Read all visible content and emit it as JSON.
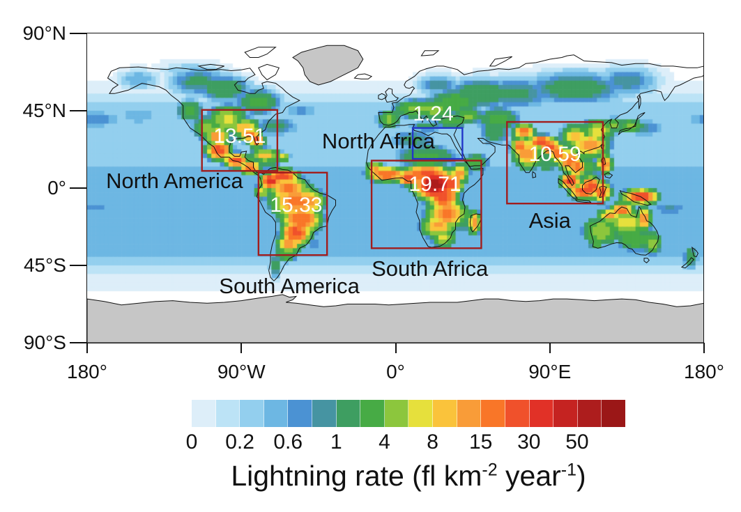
{
  "figure": {
    "background": "#ffffff"
  },
  "axes": {
    "y_ticks": [
      {
        "label": "90°N",
        "lat": 90
      },
      {
        "label": "45°N",
        "lat": 45
      },
      {
        "label": "0°",
        "lat": 0
      },
      {
        "label": "45°S",
        "lat": -45
      },
      {
        "label": "90°S",
        "lat": -90
      }
    ],
    "x_ticks": [
      {
        "label": "180°",
        "lon": -180
      },
      {
        "label": "90°W",
        "lon": -90
      },
      {
        "label": "0°",
        "lon": 0
      },
      {
        "label": "90°E",
        "lon": 90
      },
      {
        "label": "180°",
        "lon": 180
      }
    ]
  },
  "colorbar": {
    "tick_labels": [
      "0",
      "0.2",
      "0.6",
      "1",
      "4",
      "8",
      "15",
      "30",
      "50"
    ],
    "label_parts": {
      "text1": "Lightning rate (fl km",
      "sup1": "-2",
      "text2": " year",
      "sup2": "-1",
      "text3": ")"
    }
  },
  "chart_data": {
    "type": "heatmap",
    "variable": "Lightning rate",
    "units": "fl km-2 year-1",
    "projection": "equirectangular",
    "lon_range": [
      -180,
      180
    ],
    "lat_range": [
      -90,
      90
    ],
    "colorbar_tick_labels": [
      "0",
      "0.2",
      "0.6",
      "1",
      "4",
      "8",
      "15",
      "30",
      "50"
    ],
    "levels": [
      0,
      0.1,
      0.2,
      0.4,
      0.6,
      0.8,
      1,
      2,
      4,
      6,
      8,
      11,
      15,
      22,
      30,
      40,
      50,
      65
    ],
    "segment_colors": [
      "#ddeef9",
      "#bce3f6",
      "#93cfee",
      "#6db7e3",
      "#4b92d3",
      "#4694a2",
      "#3e9e61",
      "#47ab45",
      "#8cc63d",
      "#e6e03c",
      "#fac33b",
      "#f99c38",
      "#f97628",
      "#f0512b",
      "#e13127",
      "#c52321",
      "#ad1d1d",
      "#9b1717"
    ],
    "nodata_color": "#c6c6c6",
    "regions": [
      {
        "name": "North America",
        "mean_rate": "13.51",
        "box_color": "#a11d1d",
        "box_deg": {
          "lon_min": -113,
          "lon_max": -69,
          "lat_min": 10,
          "lat_max": 45.5
        },
        "value_anchor": {
          "lon": -91,
          "lat": 30
        },
        "label_anchor": {
          "lon": -129,
          "lat": 4
        }
      },
      {
        "name": "South America",
        "mean_rate": "15.33",
        "box_color": "#a11d1d",
        "box_deg": {
          "lon_min": -80,
          "lon_max": -40,
          "lat_min": -39,
          "lat_max": 9
        },
        "value_anchor": {
          "lon": -58,
          "lat": -10
        },
        "label_anchor": {
          "lon": -62,
          "lat": -57
        }
      },
      {
        "name": "North Africa",
        "mean_rate": "1.24",
        "box_color": "#2236c8",
        "box_deg": {
          "lon_min": 10,
          "lon_max": 39,
          "lat_min": 17,
          "lat_max": 35
        },
        "value_anchor": {
          "lon": 22,
          "lat": 43
        },
        "label_anchor": {
          "lon": -10,
          "lat": 27
        }
      },
      {
        "name": "South Africa",
        "mean_rate": "19.71",
        "box_color": "#a11d1d",
        "box_deg": {
          "lon_min": -14,
          "lon_max": 50,
          "lat_min": -35,
          "lat_max": 16
        },
        "value_anchor": {
          "lon": 23,
          "lat": 2
        },
        "label_anchor": {
          "lon": 20,
          "lat": -47
        }
      },
      {
        "name": "Asia",
        "mean_rate": "10.59",
        "box_color": "#a11d1d",
        "box_deg": {
          "lon_min": 65,
          "lon_max": 121,
          "lat_min": -9,
          "lat_max": 38.5
        },
        "value_anchor": {
          "lon": 93,
          "lat": 19.5
        },
        "label_anchor": {
          "lon": 90,
          "lat": -19
        }
      }
    ],
    "ocean_base_by_lat": [
      [
        90,
        0
      ],
      [
        66,
        0
      ],
      [
        60,
        0.04
      ],
      [
        52,
        0.12
      ],
      [
        45,
        0.3
      ],
      [
        38,
        0.35
      ],
      [
        30,
        0.22
      ],
      [
        22,
        0.2
      ],
      [
        15,
        0.3
      ],
      [
        8,
        0.6
      ],
      [
        2,
        0.45
      ],
      [
        -5,
        0.5
      ],
      [
        -12,
        0.45
      ],
      [
        -20,
        0.4
      ],
      [
        -28,
        0.45
      ],
      [
        -36,
        0.5
      ],
      [
        -44,
        0.25
      ],
      [
        -50,
        0.1
      ],
      [
        -56,
        0.04
      ],
      [
        -62,
        0.01
      ],
      [
        -90,
        0
      ]
    ],
    "approx_field_hotspots": [
      [
        -115,
        62,
        1.2,
        14,
        7
      ],
      [
        -100,
        58,
        2,
        12,
        6
      ],
      [
        -80,
        50,
        2.5,
        10,
        6
      ],
      [
        -150,
        63,
        0.6,
        10,
        5
      ],
      [
        -120,
        68,
        0.35,
        15,
        5
      ],
      [
        -120,
        45,
        3,
        6,
        5
      ],
      [
        -110,
        35,
        5,
        6,
        5
      ],
      [
        -98,
        40,
        7,
        8,
        6
      ],
      [
        -88,
        35,
        12,
        6,
        4
      ],
      [
        -85,
        31,
        18,
        5,
        3
      ],
      [
        -81,
        28,
        25,
        3,
        3
      ],
      [
        -104,
        30,
        15,
        5,
        4
      ],
      [
        -103,
        22,
        28,
        5,
        4
      ],
      [
        -93,
        16,
        25,
        5,
        3
      ],
      [
        -85,
        12,
        22,
        4,
        3
      ],
      [
        -76,
        19,
        10,
        6,
        3
      ],
      [
        -66,
        18,
        8,
        3,
        2
      ],
      [
        -73,
        4,
        40,
        4,
        3
      ],
      [
        -66,
        7,
        30,
        6,
        3
      ],
      [
        -63,
        0,
        18,
        8,
        5
      ],
      [
        -58,
        -8,
        18,
        10,
        7
      ],
      [
        -50,
        -8,
        15,
        6,
        5
      ],
      [
        -55,
        -18,
        22,
        8,
        6
      ],
      [
        -58,
        -26,
        28,
        6,
        5
      ],
      [
        -62,
        -32,
        15,
        5,
        4
      ],
      [
        -64,
        -38,
        4,
        5,
        4
      ],
      [
        -70,
        -45,
        1.5,
        3,
        6
      ],
      [
        -78,
        -2,
        8,
        3,
        3
      ],
      [
        23,
        2,
        60,
        8,
        6
      ],
      [
        28,
        -5,
        30,
        6,
        5
      ],
      [
        18,
        8,
        25,
        10,
        4
      ],
      [
        -5,
        8,
        22,
        8,
        3
      ],
      [
        -12,
        11,
        12,
        4,
        3
      ],
      [
        8,
        6,
        30,
        5,
        3
      ],
      [
        32,
        2,
        30,
        5,
        4
      ],
      [
        37,
        8,
        15,
        4,
        4
      ],
      [
        18,
        18,
        2.5,
        14,
        6
      ],
      [
        10,
        28,
        1.2,
        12,
        5
      ],
      [
        30,
        -15,
        18,
        8,
        6
      ],
      [
        25,
        -22,
        12,
        7,
        5
      ],
      [
        28,
        -29,
        8,
        5,
        4
      ],
      [
        46,
        -20,
        15,
        2.5,
        5
      ],
      [
        -4,
        40,
        5,
        5,
        4
      ],
      [
        12,
        46,
        5,
        10,
        4
      ],
      [
        22,
        46,
        6,
        8,
        4
      ],
      [
        35,
        50,
        3,
        12,
        6
      ],
      [
        50,
        55,
        2,
        15,
        7
      ],
      [
        25,
        60,
        1,
        10,
        5
      ],
      [
        42,
        42,
        5,
        6,
        3
      ],
      [
        33,
        39,
        4,
        7,
        3
      ],
      [
        70,
        55,
        1.2,
        20,
        8
      ],
      [
        105,
        58,
        1.5,
        25,
        8
      ],
      [
        135,
        62,
        1,
        15,
        7
      ],
      [
        60,
        40,
        2.5,
        10,
        6
      ],
      [
        75,
        33,
        22,
        4,
        3
      ],
      [
        85,
        27,
        25,
        6,
        2.5
      ],
      [
        77,
        20,
        15,
        6,
        6
      ],
      [
        73,
        24,
        18,
        4,
        4
      ],
      [
        90,
        24,
        28,
        4,
        3
      ],
      [
        95,
        20,
        18,
        4,
        4
      ],
      [
        102,
        16,
        20,
        5,
        5
      ],
      [
        106,
        12,
        18,
        4,
        4
      ],
      [
        102,
        4,
        32,
        4,
        3
      ],
      [
        110,
        -2,
        28,
        6,
        3
      ],
      [
        114,
        1,
        30,
        4,
        4
      ],
      [
        120,
        -2,
        22,
        4,
        4
      ],
      [
        122,
        14,
        20,
        3,
        4
      ],
      [
        113,
        25,
        14,
        8,
        5
      ],
      [
        105,
        30,
        10,
        6,
        5
      ],
      [
        118,
        33,
        8,
        7,
        5
      ],
      [
        127,
        37,
        5,
        4,
        3
      ],
      [
        137,
        36,
        5,
        6,
        3
      ],
      [
        143,
        -5,
        32,
        7,
        3
      ],
      [
        47,
        15,
        3,
        6,
        4
      ],
      [
        58,
        32,
        1.5,
        8,
        6
      ],
      [
        132,
        -13,
        20,
        5,
        3
      ],
      [
        125,
        -16,
        12,
        5,
        3
      ],
      [
        135,
        -20,
        8,
        10,
        6
      ],
      [
        145,
        -18,
        15,
        3,
        5
      ],
      [
        120,
        -25,
        6,
        8,
        6
      ],
      [
        140,
        -30,
        4,
        8,
        5
      ],
      [
        150,
        -32,
        5,
        4,
        5
      ],
      [
        117,
        -32,
        4,
        3,
        3
      ],
      [
        172,
        -40,
        1.5,
        4,
        6
      ],
      [
        -70,
        36,
        1.2,
        12,
        5
      ],
      [
        -55,
        45,
        0.7,
        10,
        4
      ],
      [
        145,
        35,
        0.9,
        12,
        5
      ],
      [
        -175,
        40,
        0.8,
        15,
        5
      ],
      [
        -150,
        42,
        0.6,
        12,
        5
      ],
      [
        -75,
        15,
        1.5,
        8,
        4
      ],
      [
        -175,
        -12,
        0.7,
        12,
        4
      ],
      [
        160,
        -12,
        0.9,
        10,
        4
      ],
      [
        -48,
        -32,
        0.7,
        8,
        5
      ],
      [
        18,
        36,
        1.2,
        10,
        3
      ],
      [
        88,
        14,
        2,
        5,
        4
      ],
      [
        112,
        12,
        2.5,
        6,
        5
      ],
      [
        55,
        -30,
        0.5,
        15,
        5
      ],
      [
        40,
        -20,
        1.5,
        4,
        6
      ]
    ]
  }
}
